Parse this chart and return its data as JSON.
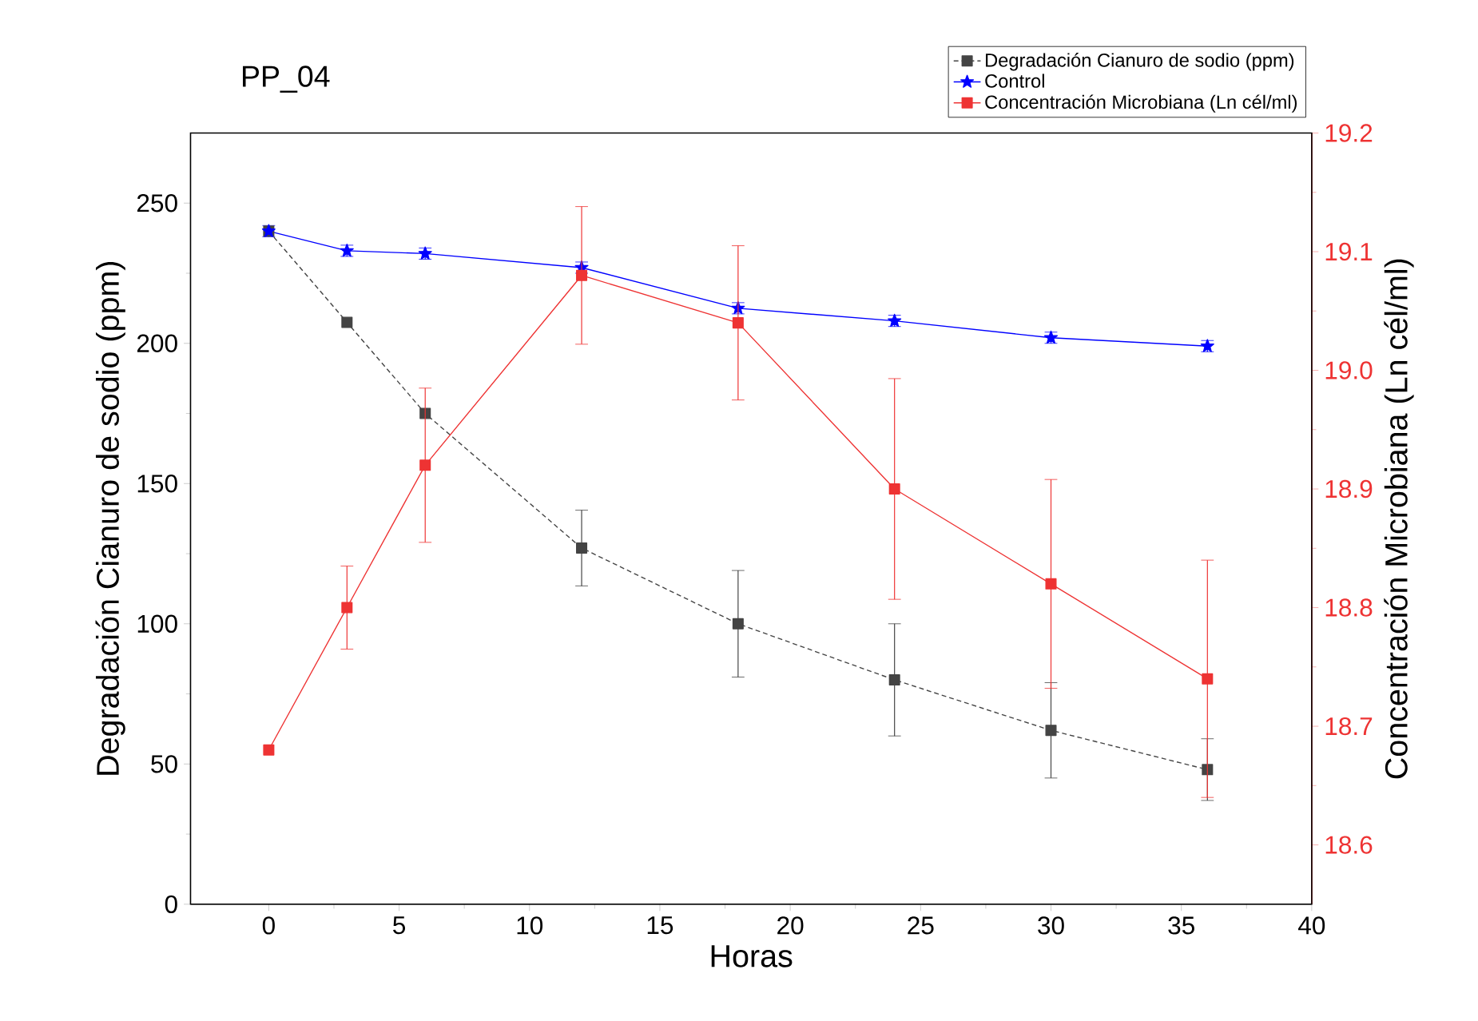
{
  "chart_data": {
    "type": "line",
    "title": "PP_04",
    "xlabel": "Horas",
    "ylabel": "Degradación Cianuro de sodio (ppm)",
    "y2label": "Concentración Microbiana (Ln cél/ml)",
    "x": [
      0,
      3,
      6,
      12,
      18,
      24,
      30,
      36
    ],
    "series": [
      {
        "name": "Degradación Cianuro de sodio (ppm)",
        "color": "#444444",
        "marker": "square",
        "line_style": "dashed",
        "values": [
          240,
          207.5,
          175,
          127,
          100,
          80,
          62,
          48
        ],
        "errors": [
          null,
          null,
          null,
          13.5,
          19,
          20,
          17,
          11
        ]
      },
      {
        "name": "Control",
        "color": "#0000ff",
        "marker": "star",
        "line_style": "solid",
        "values": [
          240,
          233,
          232,
          227,
          212.5,
          208,
          202,
          199
        ],
        "errors": [
          2,
          2,
          2,
          2,
          2,
          2,
          2,
          2
        ]
      },
      {
        "name": "Concentración Microbiana (Ln cél/ml)",
        "color": "#ee3333",
        "marker": "square",
        "line_style": "solid",
        "axis": "y2",
        "values": [
          18.68,
          18.8,
          18.92,
          19.08,
          19.04,
          18.9,
          18.82,
          18.74
        ],
        "errors": [
          null,
          0.035,
          0.065,
          0.058,
          0.065,
          0.093,
          0.088,
          0.1
        ]
      }
    ],
    "xlim": [
      -3,
      40
    ],
    "xticks": [
      0,
      5,
      10,
      15,
      20,
      25,
      30,
      35,
      40
    ],
    "ylim": [
      0,
      275
    ],
    "yticks": [
      0,
      50,
      100,
      150,
      200,
      250
    ],
    "y2lim": [
      18.55,
      19.2
    ],
    "y2ticks": [
      18.6,
      18.7,
      18.8,
      18.9,
      {
        "value": 19,
        "label": "19.0"
      },
      19.1,
      19.2
    ],
    "grid": false,
    "legend": "top right"
  }
}
